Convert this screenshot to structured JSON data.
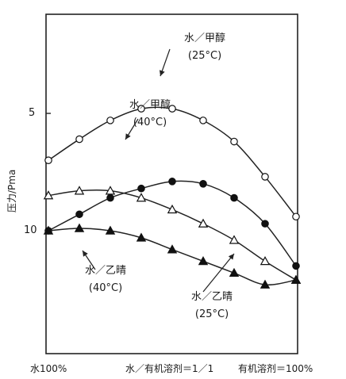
{
  "chart_data": {
    "type": "line",
    "ylabel": "压力/Pma",
    "x_ticks": [
      "水100%",
      "水／有机溶剂＝1／1",
      "有机溶剂＝100%"
    ],
    "y_ticks": [
      "5",
      "10"
    ],
    "y_inverted": true,
    "grid": false,
    "x": [
      0,
      0.125,
      0.25,
      0.375,
      0.5,
      0.625,
      0.75,
      0.875,
      1
    ],
    "series": [
      {
        "name": "水／甲醇 (25°C)",
        "marker": "open-circle",
        "values": [
          7.0,
          6.1,
          5.3,
          4.8,
          4.8,
          5.3,
          6.2,
          7.7,
          9.4
        ]
      },
      {
        "name": "水／甲醇 (40°C)",
        "marker": "filled-circle",
        "values": [
          10.0,
          9.3,
          8.6,
          8.2,
          7.9,
          8.0,
          8.6,
          9.7,
          11.5
        ]
      },
      {
        "name": "水／乙晴 (25°C)",
        "marker": "open-triangle",
        "values": [
          8.5,
          8.3,
          8.3,
          8.6,
          9.1,
          9.7,
          10.4,
          11.3,
          12.1
        ]
      },
      {
        "name": "水／乙晴 (40°C)",
        "marker": "filled-triangle",
        "values": [
          10.0,
          9.9,
          10.0,
          10.3,
          10.8,
          11.3,
          11.8,
          12.3,
          12.1
        ]
      }
    ],
    "annotations": [
      {
        "line1": "水／甲醇",
        "line2": "(25°C)"
      },
      {
        "line1": "水／甲醇",
        "line2": "(40°C)"
      },
      {
        "line1": "水／乙晴",
        "line2": "(40°C)"
      },
      {
        "line1": "水／乙晴",
        "line2": "(25°C)"
      }
    ]
  }
}
